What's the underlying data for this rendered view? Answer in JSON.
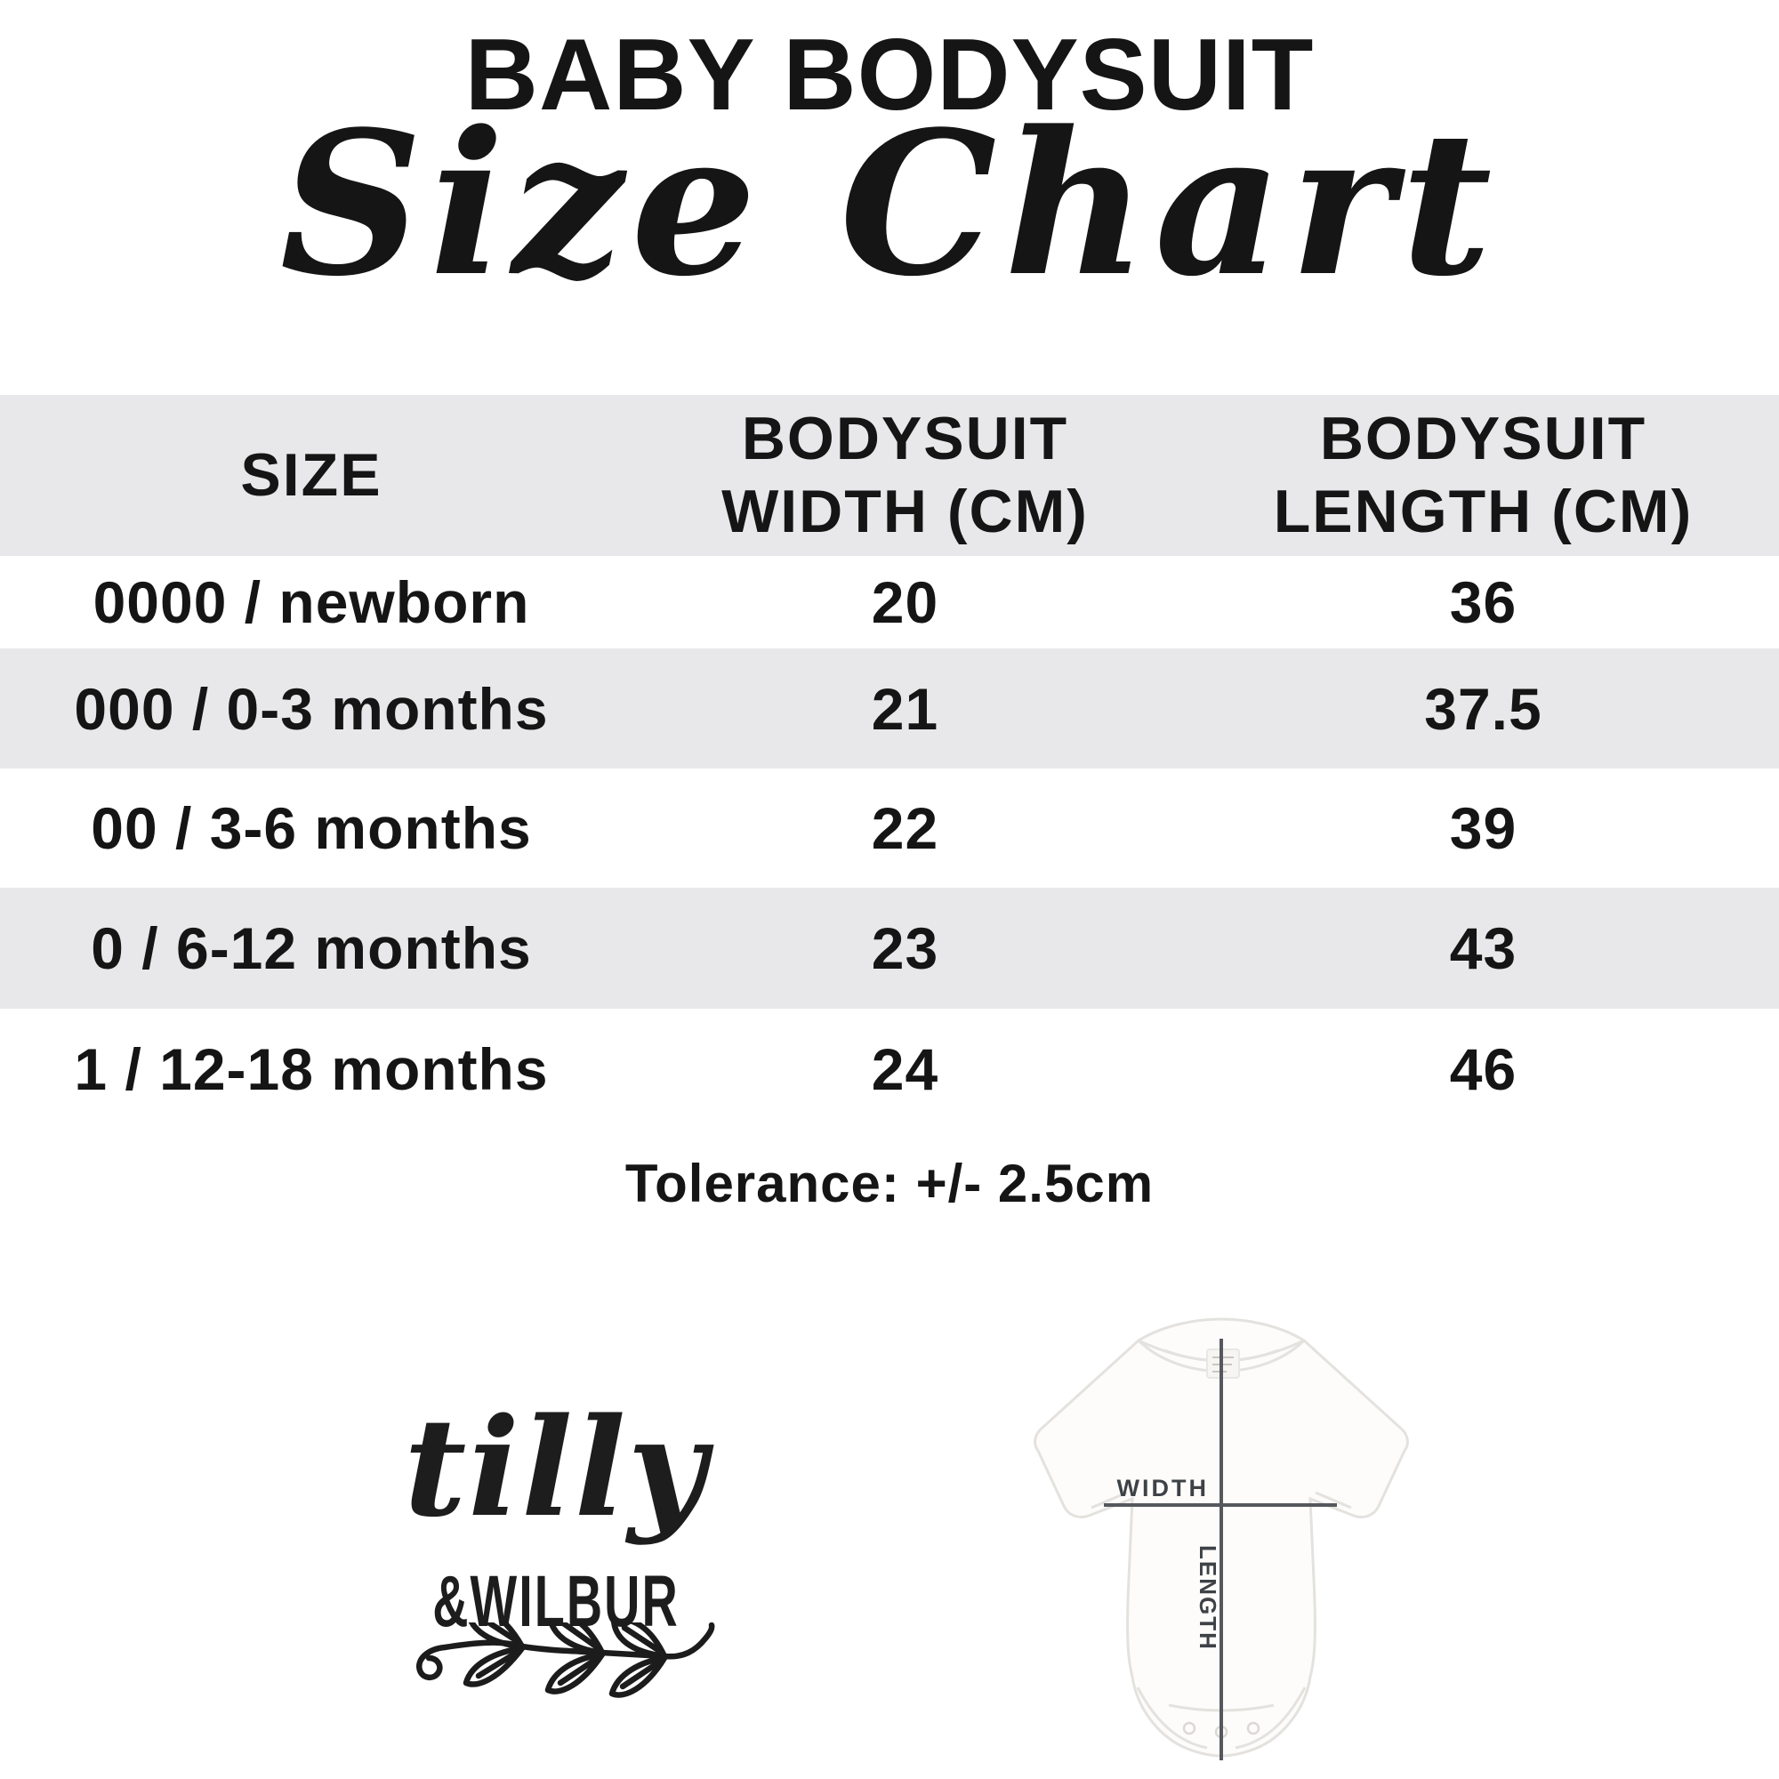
{
  "page": {
    "title": "BABY BODYSUIT",
    "subtitle": "Size Chart"
  },
  "chart_data": {
    "type": "table",
    "title": "BABY BODYSUIT Size Chart",
    "columns": [
      "SIZE",
      "BODYSUIT WIDTH (CM)",
      "BODYSUIT LENGTH (CM)"
    ],
    "rows": [
      {
        "size": "0000 / newborn",
        "width_cm": "20",
        "length_cm": "36"
      },
      {
        "size": "000 / 0-3 months",
        "width_cm": "21",
        "length_cm": "37.5"
      },
      {
        "size": "00 / 3-6 months",
        "width_cm": "22",
        "length_cm": "39"
      },
      {
        "size": "0 / 6-12 months",
        "width_cm": "23",
        "length_cm": "43"
      },
      {
        "size": "1 / 12-18 months",
        "width_cm": "24",
        "length_cm": "46"
      }
    ],
    "footnote": "Tolerance: +/- 2.5cm",
    "layout": {
      "shaded_rows": "header, 000 / 0-3 months, 0 / 6-12 months"
    }
  },
  "logo": {
    "name": "tilly",
    "ampersand": "&",
    "secondary": "WILBUR"
  },
  "diagram": {
    "width_label": "WIDTH",
    "length_label": "LENGTH"
  },
  "colors": {
    "row_shade": "#e8e8ea",
    "text": "#151515",
    "measure_line": "#55585c",
    "diagram_label": "#3e4247",
    "bodysuit_fill": "#fdfcfa",
    "bodysuit_outline": "#e4e2de"
  }
}
